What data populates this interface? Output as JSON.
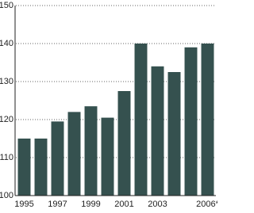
{
  "chart_data": {
    "type": "bar",
    "categories": [
      "1995",
      null,
      "1997",
      null,
      "1999",
      null,
      "2001",
      null,
      "2003",
      null,
      null,
      "2006*"
    ],
    "values": [
      115,
      115,
      119.5,
      122,
      123.5,
      120.5,
      127.5,
      140,
      134,
      132.5,
      139,
      140
    ],
    "color": "#35514f",
    "ylim": [
      100,
      150
    ],
    "yticks": [
      100,
      110,
      120,
      130,
      140,
      150
    ],
    "grid": true
  }
}
